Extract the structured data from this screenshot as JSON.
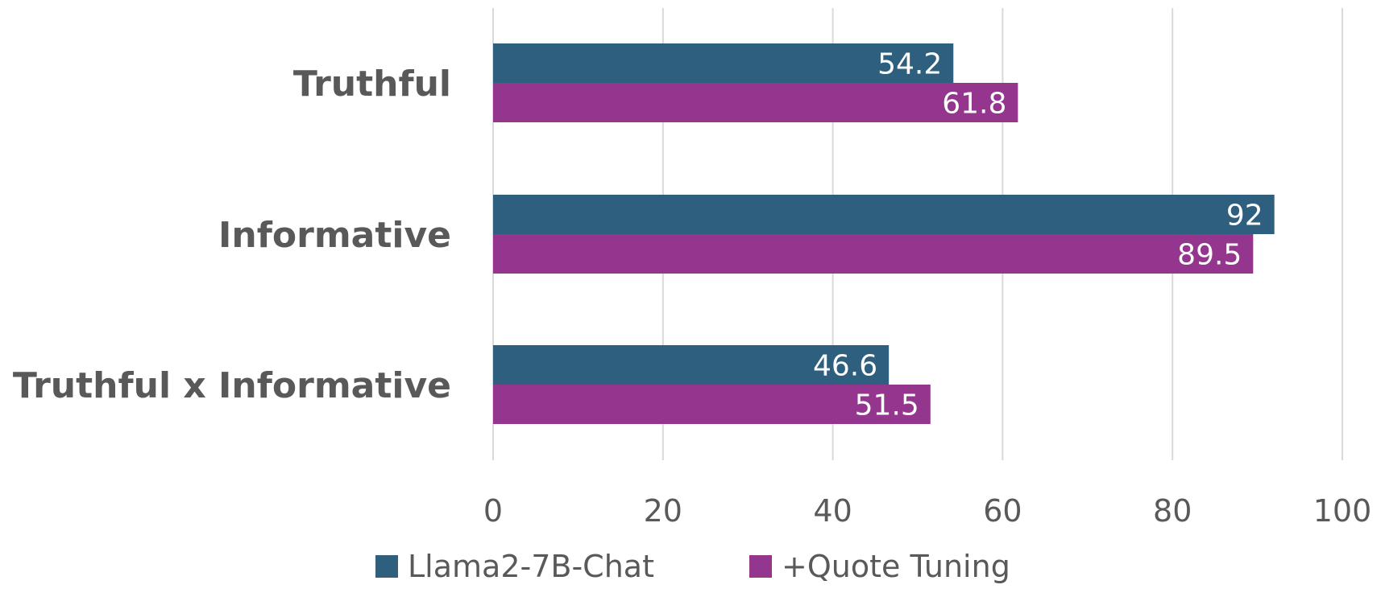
{
  "chart_data": {
    "type": "bar",
    "orientation": "horizontal",
    "categories": [
      "Truthful",
      "Informative",
      "Truthful x Informative"
    ],
    "series": [
      {
        "name": "Llama2-7B-Chat",
        "values": [
          54.2,
          92,
          46.6
        ],
        "labels": [
          "54.2",
          "92",
          "46.6"
        ],
        "color": "#2e5f7f"
      },
      {
        "name": "+Quote Tuning",
        "values": [
          61.8,
          89.5,
          51.5
        ],
        "labels": [
          "61.8",
          "89.5",
          "51.5"
        ],
        "color": "#94368d"
      }
    ],
    "xlim": [
      0,
      100
    ],
    "xticks": [
      0,
      20,
      40,
      60,
      80,
      100
    ],
    "grid": "vertical",
    "legend": "bottom"
  }
}
